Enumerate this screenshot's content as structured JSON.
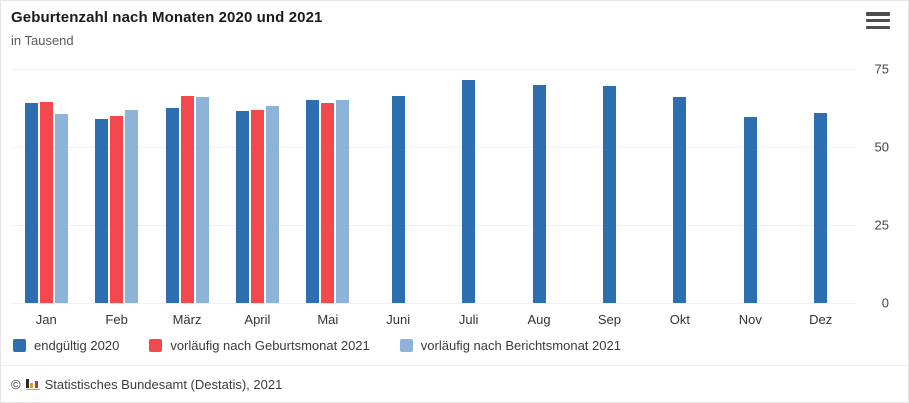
{
  "header": {
    "title": "Geburtenzahl nach Monaten 2020 und 2021",
    "subtitle": "in Tausend"
  },
  "chart_data": {
    "type": "bar",
    "title": "Geburtenzahl nach Monaten 2020 und 2021",
    "subtitle": "in Tausend",
    "unit": "Tausend",
    "categories": [
      "Jan",
      "Feb",
      "März",
      "April",
      "Mai",
      "Juni",
      "Juli",
      "Aug",
      "Sep",
      "Okt",
      "Nov",
      "Dez"
    ],
    "series": [
      {
        "name": "endgültig 2020",
        "color": "#2D6EB0",
        "values": [
          64,
          59,
          62.5,
          61.5,
          65,
          66.5,
          71.5,
          70,
          69.5,
          66,
          59.5,
          61
        ]
      },
      {
        "name": "vorläufig nach Geburtsmonat 2021",
        "color": "#F4484F",
        "values": [
          64.5,
          60,
          66.5,
          62,
          64,
          null,
          null,
          null,
          null,
          null,
          null,
          null
        ]
      },
      {
        "name": "vorläufig nach Berichtsmonat 2021",
        "color": "#8DB4D8",
        "values": [
          60.5,
          62,
          66,
          63,
          65,
          null,
          null,
          null,
          null,
          null,
          null,
          null
        ]
      }
    ],
    "ylim": [
      0,
      75
    ],
    "yticks": [
      0,
      25,
      50,
      75
    ],
    "y_axis_side": "right",
    "grid": true,
    "legend_position": "bottom"
  },
  "footer": {
    "copyright": "©",
    "source": "Statistisches Bundesamt (Destatis), 2021"
  },
  "logo_colors": {
    "dark": "#2b2b2b",
    "gold": "#d9a11d",
    "red": "#c8312b"
  }
}
